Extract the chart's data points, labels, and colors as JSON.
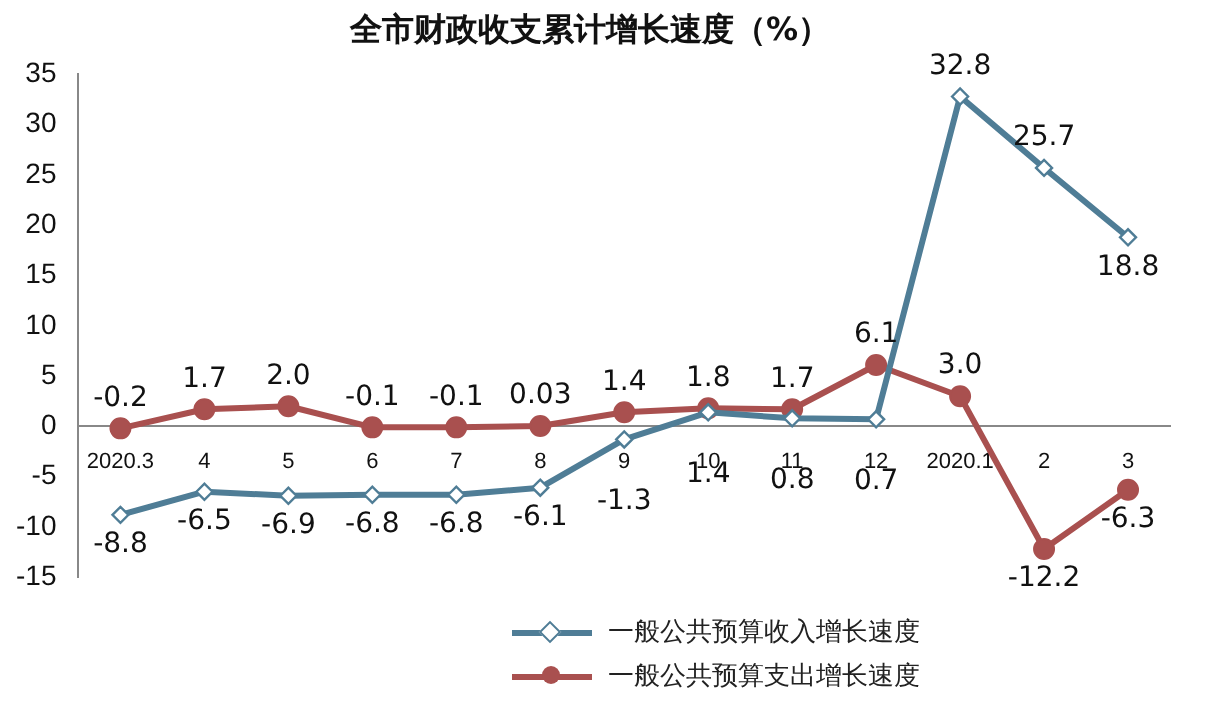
{
  "chart_data": {
    "type": "line",
    "title": "全市财政收支累计增长速度（%）",
    "categories": [
      "2020.3",
      "4",
      "5",
      "6",
      "7",
      "8",
      "9",
      "10",
      "11",
      "12",
      "2020.1",
      "2",
      "3"
    ],
    "series": [
      {
        "name": "一般公共预算收入增长速度",
        "color": "#4f7d96",
        "marker": "diamond",
        "values": [
          -8.8,
          -6.5,
          -6.9,
          -6.8,
          -6.8,
          -6.1,
          -1.3,
          1.4,
          0.8,
          0.7,
          32.8,
          25.7,
          18.8
        ],
        "value_labels": [
          "-8.8",
          "-6.5",
          "-6.9",
          "-6.8",
          "-6.8",
          "-6.1",
          "-1.3",
          "1.4",
          "0.8",
          "0.7",
          "32.8",
          "25.7",
          "18.8"
        ]
      },
      {
        "name": "一般公共预算支出增长速度",
        "color": "#a9504f",
        "marker": "circle",
        "values": [
          -0.2,
          1.7,
          2.0,
          -0.1,
          -0.1,
          0.03,
          1.4,
          1.8,
          1.7,
          6.1,
          3.0,
          -12.2,
          -6.3
        ],
        "value_labels": [
          "-0.2",
          "1.7",
          "2.0",
          "-0.1",
          "-0.1",
          "0.03",
          "1.4",
          "1.8",
          "1.7",
          "6.1",
          "3.0",
          "-12.2",
          "-6.3"
        ]
      }
    ],
    "ylim": [
      -15,
      35
    ],
    "yticks": [
      -15,
      -10,
      -5,
      0,
      5,
      10,
      15,
      20,
      25,
      30,
      35
    ],
    "grid": false,
    "legend": "bottom right",
    "line_style": "solid"
  }
}
